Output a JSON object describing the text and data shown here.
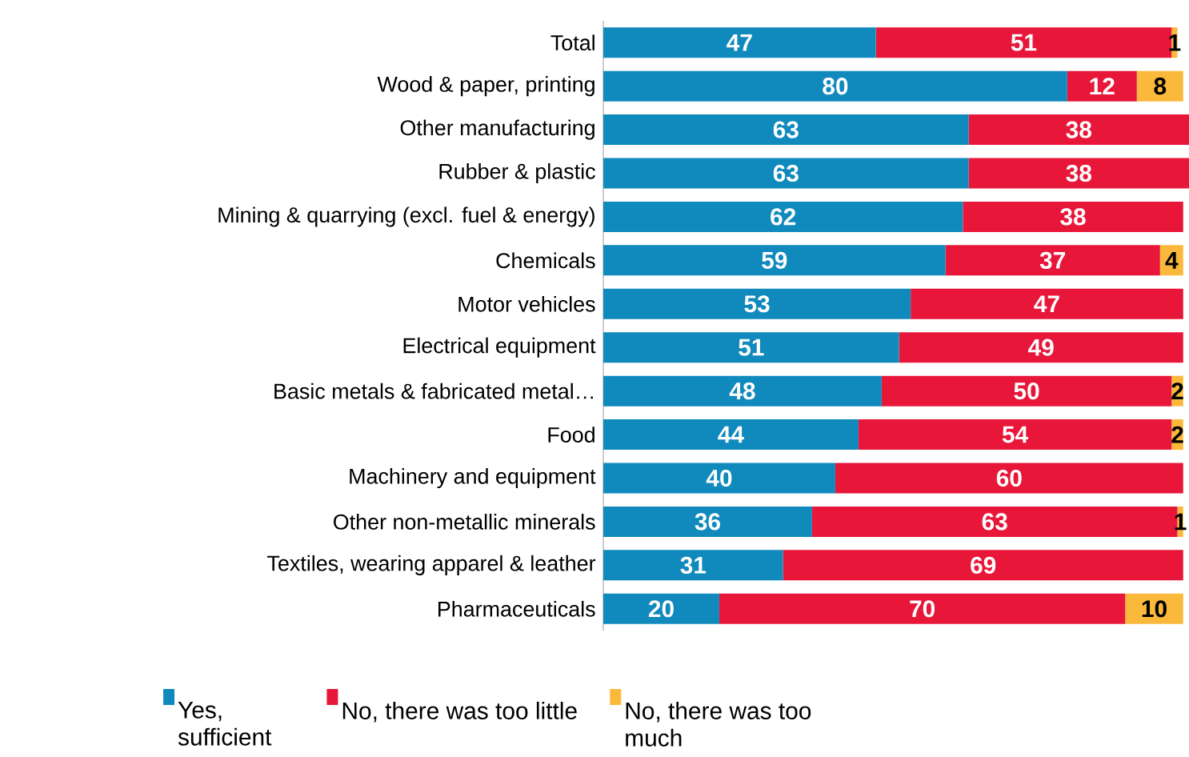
{
  "chart_data": {
    "type": "bar",
    "orientation": "horizontal",
    "stacked": true,
    "data_labels": true,
    "legend": "bottom",
    "tick_labels": "y",
    "xlim": [
      0,
      101
    ],
    "categories": [
      "Total",
      "Wood & paper, printing",
      "Other manufacturing",
      "Rubber & plastic",
      "Mining & quarrying (excl. fuel & energy)",
      "Chemicals",
      "Motor vehicles",
      "Electrical equipment",
      "Basic metals & fabricated metal…",
      "Food",
      "Machinery and equipment",
      "Other non-metallic minerals",
      "Textiles, wearing apparel & leather",
      "Pharmaceuticals"
    ],
    "series": [
      {
        "name": "Yes, sufficient",
        "color": "#1089bd",
        "values": [
          47,
          80,
          63,
          63,
          62,
          59,
          53,
          51,
          48,
          44,
          40,
          36,
          31,
          20
        ]
      },
      {
        "name": "No, there was too little",
        "color": "#e8173a",
        "values": [
          51,
          12,
          38,
          38,
          38,
          37,
          47,
          49,
          50,
          54,
          60,
          63,
          69,
          70
        ]
      },
      {
        "name": "No, there was too much",
        "color": "#fbb93c",
        "values": [
          1,
          8,
          null,
          null,
          null,
          4,
          null,
          null,
          2,
          2,
          null,
          1,
          null,
          10
        ]
      }
    ]
  }
}
